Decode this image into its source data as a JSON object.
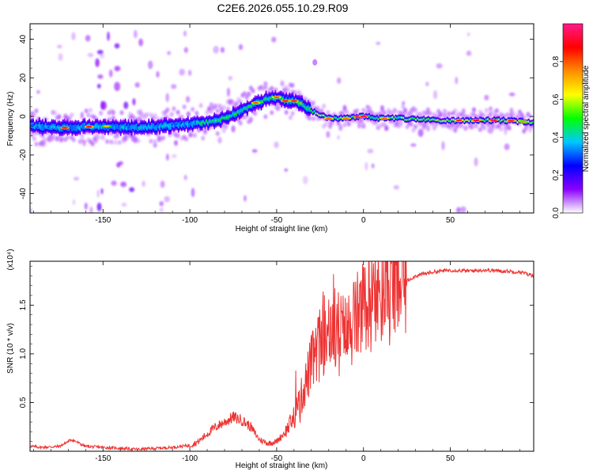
{
  "title": "C2E6.2026.055.10.29.R09",
  "chart_data": [
    {
      "type": "heatmap",
      "name": "spectrogram",
      "xlabel": "Height of straight line (km)",
      "ylabel": "Frequency (Hz)",
      "xlim": [
        -192,
        98
      ],
      "ylim": [
        -50,
        48
      ],
      "xticks": [
        -150,
        -100,
        -50,
        0,
        50
      ],
      "xtick_labels": [
        "-150",
        "-100",
        "-50",
        "0",
        "50"
      ],
      "yticks": [
        -40,
        -20,
        0,
        20,
        40
      ],
      "ytick_labels": [
        "-40",
        "-20",
        "0",
        "20",
        "40"
      ],
      "ridge": {
        "x": [
          -192,
          -170,
          -150,
          -130,
          -115,
          -100,
          -90,
          -80,
          -70,
          -62,
          -55,
          -50,
          -45,
          -40,
          -35,
          -30,
          -25,
          -20,
          -10,
          0,
          10,
          20,
          40,
          60,
          80,
          98
        ],
        "frequency": [
          -5,
          -6,
          -5,
          -6,
          -5,
          -4,
          -3,
          -1,
          3,
          7,
          9,
          10,
          8,
          8,
          6,
          3,
          1,
          -1,
          -1,
          0,
          -1,
          -1,
          -2,
          -2,
          -2,
          -3
        ]
      },
      "colorbar": {
        "label": "Normalized spectral amplitude",
        "range": [
          0,
          1
        ],
        "ticks": [
          0.0,
          0.2,
          0.4,
          0.6,
          0.8
        ],
        "tick_labels": [
          "0.0",
          "0.2",
          "0.4",
          "0.6",
          "0.8"
        ],
        "colors": [
          "#ffffff",
          "#8a00ff",
          "#0000ff",
          "#00c8ff",
          "#00ff00",
          "#ffff00",
          "#ff8c00",
          "#ff0000",
          "#ff1a8c"
        ]
      }
    },
    {
      "type": "line",
      "name": "snr",
      "xlabel": "Height of straight line (km)",
      "ylabel": "SNR (10 * v/v)",
      "multiplier_label": "(x10⁴)",
      "xlim": [
        -192,
        98
      ],
      "ylim": [
        0,
        1.95
      ],
      "xticks": [
        -150,
        -100,
        -50,
        0,
        50
      ],
      "xtick_labels": [
        "-150",
        "-100",
        "-50",
        "0",
        "50"
      ],
      "yticks": [
        0.5,
        1.0,
        1.5
      ],
      "ytick_labels": [
        "0.5",
        "1.0",
        "1.5"
      ],
      "color": "#ee3333",
      "x": [
        -192,
        -185,
        -175,
        -168,
        -160,
        -150,
        -140,
        -130,
        -120,
        -110,
        -100,
        -95,
        -90,
        -85,
        -80,
        -75,
        -70,
        -65,
        -60,
        -55,
        -50,
        -45,
        -40,
        -35,
        -30,
        -25,
        -20,
        -15,
        -10,
        -5,
        0,
        5,
        10,
        15,
        20,
        25,
        30,
        40,
        50,
        60,
        70,
        80,
        90,
        98
      ],
      "y": [
        0.05,
        0.04,
        0.05,
        0.12,
        0.05,
        0.04,
        0.03,
        0.02,
        0.03,
        0.04,
        0.06,
        0.1,
        0.18,
        0.25,
        0.3,
        0.35,
        0.32,
        0.25,
        0.12,
        0.08,
        0.1,
        0.2,
        0.35,
        0.6,
        0.9,
        1.1,
        1.3,
        1.25,
        1.2,
        1.35,
        1.45,
        1.55,
        1.6,
        1.65,
        1.7,
        1.75,
        1.8,
        1.84,
        1.86,
        1.85,
        1.86,
        1.85,
        1.84,
        1.8
      ]
    }
  ]
}
